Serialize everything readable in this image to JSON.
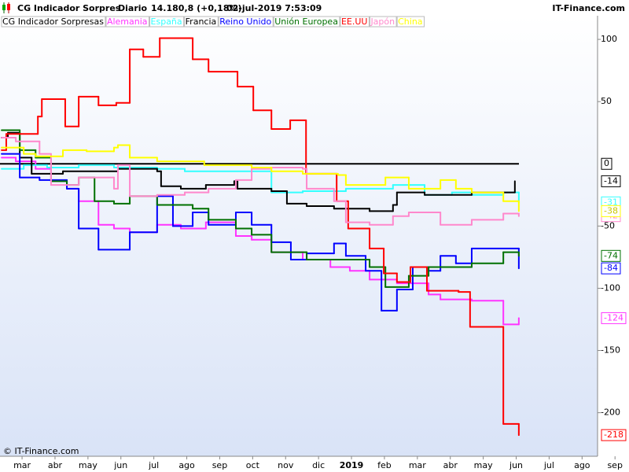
{
  "chart_data": {
    "type": "line",
    "title": "CG Indicador Sorpres",
    "period": "Diario",
    "price": "14.180,8 (+0,18%)",
    "datetime": "02-jul-2019 7:53:09",
    "brand": "IT-Finance.com",
    "footer": "© IT-Finance.com",
    "legend_title": "CG Indicador Sorpresas",
    "step": true,
    "zero_line": 0,
    "zero_line_color": "#000000",
    "xlim": [
      -0.67,
      17.47
    ],
    "xticks": [
      {
        "value": 0,
        "label": "mar"
      },
      {
        "value": 1,
        "label": "abr"
      },
      {
        "value": 2,
        "label": "may"
      },
      {
        "value": 3,
        "label": "jun"
      },
      {
        "value": 4,
        "label": "jul"
      },
      {
        "value": 5,
        "label": "ago"
      },
      {
        "value": 6,
        "label": "sep"
      },
      {
        "value": 7,
        "label": "oct"
      },
      {
        "value": 8,
        "label": "nov"
      },
      {
        "value": 9,
        "label": "dic"
      },
      {
        "value": 10,
        "label": "2019"
      },
      {
        "value": 11,
        "label": "feb"
      },
      {
        "value": 12,
        "label": "mar"
      },
      {
        "value": 13,
        "label": "abr"
      },
      {
        "value": 14,
        "label": "may"
      },
      {
        "value": 15,
        "label": "jun"
      },
      {
        "value": 16,
        "label": "jul"
      },
      {
        "value": 17,
        "label": "ago"
      },
      {
        "value": 18,
        "label": "sep"
      }
    ],
    "ylim": [
      -235,
      119
    ],
    "yticks": [
      100,
      50,
      -50,
      -100,
      -150,
      -200
    ],
    "series": [
      {
        "name": "Alemania",
        "color": "#ff33ff",
        "x": [
          -0.62,
          -0.19,
          0.41,
          0.88,
          1.36,
          1.72,
          2.32,
          2.79,
          3.27,
          4.1,
          4.82,
          5.58,
          6.49,
          6.97,
          7.57,
          8.52,
          9.36,
          9.95,
          10.55,
          11.38,
          12.34,
          12.7,
          13.65,
          14.61,
          15.08
        ],
        "values": [
          5,
          2,
          -4,
          -14,
          -20,
          -30,
          -49,
          -52,
          -55,
          -49,
          -52,
          -47,
          -58,
          -61,
          -71,
          -77,
          -83,
          -86,
          -93,
          -96,
          -105,
          -109,
          -110,
          -129,
          -124
        ]
      },
      {
        "name": "España",
        "color": "#33ffff",
        "x": [
          -0.62,
          0.05,
          0.76,
          1.72,
          2.79,
          4.1,
          4.94,
          7.57,
          8.52,
          9.83,
          11.26,
          12.22,
          13.05,
          13.65,
          14.61,
          15.08
        ],
        "values": [
          -4,
          -1,
          -3,
          -1,
          -3,
          -4,
          -6,
          -23,
          -22,
          -20,
          -17,
          -25,
          -23,
          -25,
          -23,
          -31
        ]
      },
      {
        "name": "Francia",
        "color": "#000000",
        "x": [
          -0.62,
          -0.43,
          -0.07,
          0.29,
          1.24,
          2.91,
          4.1,
          4.22,
          4.82,
          5.58,
          6.44,
          6.54,
          7.57,
          8.04,
          8.64,
          9.47,
          10.55,
          11.26,
          11.38,
          12.22,
          13.65,
          14.61,
          14.96
        ],
        "values": [
          21,
          25,
          5,
          -8,
          -6,
          -4,
          -6,
          -18,
          -20,
          -17,
          -14,
          -20,
          -22,
          -32,
          -34,
          -36,
          -38,
          -33,
          -23,
          -25,
          -23,
          -23,
          -14
        ]
      },
      {
        "name": "Reino Unido",
        "color": "#0000ff",
        "x": [
          -0.62,
          -0.07,
          0.53,
          1.36,
          1.72,
          2.32,
          3.27,
          4.1,
          4.58,
          5.18,
          5.66,
          6.49,
          6.97,
          7.57,
          8.16,
          8.64,
          9.47,
          9.83,
          10.43,
          10.91,
          11.38,
          11.86,
          12.34,
          12.7,
          13.17,
          13.65,
          15.08
        ],
        "values": [
          8,
          -11,
          -13,
          -20,
          -52,
          -69,
          -55,
          -26,
          -50,
          -39,
          -49,
          -39,
          -49,
          -63,
          -77,
          -72,
          -64,
          -74,
          -86,
          -118,
          -101,
          -83,
          -86,
          -74,
          -80,
          -68,
          -84
        ]
      },
      {
        "name": "Unión Europea",
        "color": "#007000",
        "x": [
          -0.62,
          -0.07,
          0.41,
          0.88,
          1.36,
          1.72,
          2.2,
          2.79,
          3.27,
          4.1,
          5.18,
          5.66,
          6.49,
          6.97,
          7.57,
          8.64,
          10.55,
          11.03,
          11.74,
          12.34,
          13.65,
          14.61,
          15.08
        ],
        "values": [
          27,
          11,
          5,
          -14,
          -17,
          -11,
          -30,
          -32,
          -26,
          -33,
          -36,
          -45,
          -52,
          -57,
          -71,
          -77,
          -83,
          -99,
          -90,
          -83,
          -80,
          -71,
          -74
        ]
      },
      {
        "name": "EE.UU",
        "color": "#ff0000",
        "x": [
          -0.62,
          -0.48,
          0.48,
          0.6,
          1.31,
          1.72,
          2.32,
          2.86,
          3.27,
          3.68,
          4.18,
          5.18,
          5.66,
          6.54,
          7.02,
          7.57,
          8.14,
          8.62,
          9.55,
          9.9,
          10.55,
          10.98,
          11.38,
          11.79,
          12.29,
          13.25,
          13.6,
          14.61,
          15.08
        ],
        "values": [
          11,
          24,
          38,
          52,
          30,
          54,
          47,
          49,
          92,
          86,
          101,
          84,
          74,
          62,
          43,
          28,
          35,
          -8,
          -30,
          -52,
          -68,
          -88,
          -95,
          -83,
          -102,
          -103,
          -131,
          -209,
          -218
        ]
      },
      {
        "name": "Japón",
        "color": "#ff88cc",
        "x": [
          -0.62,
          -0.19,
          0.53,
          0.88,
          1.72,
          2.79,
          2.91,
          3.27,
          4.1,
          4.94,
          5.66,
          6.49,
          6.97,
          7.57,
          8.52,
          8.64,
          9.47,
          9.83,
          10.55,
          11.26,
          11.74,
          12.7,
          13.65,
          14.61,
          15.08
        ],
        "values": [
          21,
          18,
          8,
          -17,
          -11,
          -20,
          -1,
          -26,
          -25,
          -23,
          -20,
          -13,
          -4,
          -3,
          -4,
          -20,
          -30,
          -47,
          -49,
          -42,
          -39,
          -49,
          -45,
          -40,
          -42
        ]
      },
      {
        "name": "China",
        "color": "#ffff00",
        "x": [
          -0.62,
          0.05,
          0.41,
          1.24,
          1.96,
          2.79,
          2.91,
          3.27,
          4.1,
          5.53,
          6.97,
          7.57,
          8.52,
          9.59,
          9.83,
          11.03,
          11.74,
          12.7,
          13.17,
          13.65,
          14.61,
          15.08
        ],
        "values": [
          13,
          8,
          6,
          11,
          10,
          13,
          15,
          5,
          2,
          -1,
          -3,
          -6,
          -8,
          -9,
          -17,
          -11,
          -20,
          -13,
          -20,
          -23,
          -30,
          -38
        ]
      }
    ]
  }
}
